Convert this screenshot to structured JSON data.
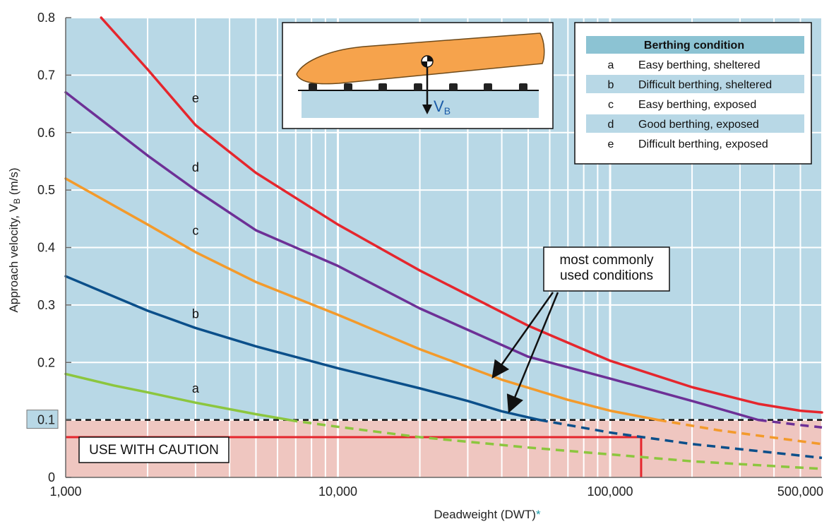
{
  "chart_data": {
    "type": "line",
    "xlabel": "Deadweight (DWT)",
    "xlabel_suffix": "*",
    "ylabel": "Approach velocity, V",
    "ylabel_sub": "B",
    "ylabel_unit": " (m/s)",
    "x_scale": "log",
    "xlim": [
      1000,
      600000
    ],
    "ylim": [
      0,
      0.8
    ],
    "x_ticks": [
      {
        "value": 1000,
        "label": "1,000"
      },
      {
        "value": 10000,
        "label": "10,000"
      },
      {
        "value": 100000,
        "label": "100,000"
      },
      {
        "value": 500000,
        "label": "500,000"
      }
    ],
    "y_ticks": [
      {
        "value": 0,
        "label": "0"
      },
      {
        "value": 0.1,
        "label": "0.1"
      },
      {
        "value": 0.2,
        "label": "0.2"
      },
      {
        "value": 0.3,
        "label": "0.3"
      },
      {
        "value": 0.4,
        "label": "0.4"
      },
      {
        "value": 0.5,
        "label": "0.5"
      },
      {
        "value": 0.6,
        "label": "0.6"
      },
      {
        "value": 0.7,
        "label": "0.7"
      },
      {
        "value": 0.8,
        "label": "0.8"
      }
    ],
    "grid": true,
    "threshold": 0.1,
    "series": [
      {
        "id": "a",
        "color": "#8cc63e",
        "points": [
          [
            1000,
            0.18
          ],
          [
            1500,
            0.16
          ],
          [
            2000,
            0.148
          ],
          [
            3000,
            0.13
          ],
          [
            5000,
            0.11
          ],
          [
            7000,
            0.098
          ],
          [
            10000,
            0.088
          ],
          [
            20000,
            0.07
          ],
          [
            50000,
            0.052
          ],
          [
            100000,
            0.04
          ],
          [
            200000,
            0.028
          ],
          [
            500000,
            0.017
          ],
          [
            600000,
            0.015
          ]
        ]
      },
      {
        "id": "b",
        "color": "#0b4f8a",
        "points": [
          [
            1000,
            0.35
          ],
          [
            2000,
            0.29
          ],
          [
            3000,
            0.26
          ],
          [
            5000,
            0.228
          ],
          [
            10000,
            0.19
          ],
          [
            20000,
            0.155
          ],
          [
            30000,
            0.133
          ],
          [
            40000,
            0.115
          ],
          [
            55000,
            0.1
          ],
          [
            100000,
            0.078
          ],
          [
            200000,
            0.058
          ],
          [
            500000,
            0.038
          ],
          [
            600000,
            0.034
          ]
        ]
      },
      {
        "id": "c",
        "color": "#f39a2b",
        "points": [
          [
            1000,
            0.52
          ],
          [
            2000,
            0.44
          ],
          [
            3000,
            0.392
          ],
          [
            5000,
            0.34
          ],
          [
            10000,
            0.283
          ],
          [
            20000,
            0.223
          ],
          [
            40000,
            0.17
          ],
          [
            70000,
            0.135
          ],
          [
            100000,
            0.116
          ],
          [
            150000,
            0.1
          ],
          [
            250000,
            0.082
          ],
          [
            500000,
            0.063
          ],
          [
            600000,
            0.058
          ]
        ]
      },
      {
        "id": "d",
        "color": "#6d3096",
        "points": [
          [
            1000,
            0.67
          ],
          [
            2000,
            0.56
          ],
          [
            3000,
            0.5
          ],
          [
            5000,
            0.43
          ],
          [
            10000,
            0.368
          ],
          [
            20000,
            0.294
          ],
          [
            50000,
            0.21
          ],
          [
            100000,
            0.172
          ],
          [
            200000,
            0.133
          ],
          [
            350000,
            0.1
          ],
          [
            500000,
            0.091
          ],
          [
            600000,
            0.087
          ]
        ]
      },
      {
        "id": "e",
        "color": "#e5262d",
        "points": [
          [
            1350,
            0.8
          ],
          [
            2000,
            0.71
          ],
          [
            3000,
            0.613
          ],
          [
            5000,
            0.53
          ],
          [
            10000,
            0.44
          ],
          [
            20000,
            0.36
          ],
          [
            50000,
            0.264
          ],
          [
            100000,
            0.203
          ],
          [
            200000,
            0.157
          ],
          [
            350000,
            0.128
          ],
          [
            500000,
            0.116
          ],
          [
            600000,
            0.113
          ]
        ]
      }
    ],
    "curve_labels": [
      {
        "id": "a",
        "text": "a",
        "x": 3000,
        "y": 0.14
      },
      {
        "id": "b",
        "text": "b",
        "x": 3000,
        "y": 0.27
      },
      {
        "id": "c",
        "text": "c",
        "x": 3000,
        "y": 0.415
      },
      {
        "id": "d",
        "text": "d",
        "x": 3000,
        "y": 0.525
      },
      {
        "id": "e",
        "text": "e",
        "x": 3000,
        "y": 0.645
      }
    ],
    "legend": {
      "position": "top-right",
      "title": "Berthing condition",
      "entries": [
        {
          "key": "a",
          "label": "Easy berthing, sheltered"
        },
        {
          "key": "b",
          "label": "Difficult berthing, sheltered"
        },
        {
          "key": "c",
          "label": "Easy berthing, exposed"
        },
        {
          "key": "d",
          "label": "Good berthing, exposed"
        },
        {
          "key": "e",
          "label": "Difficult berthing, exposed"
        }
      ]
    },
    "annotations": {
      "caution_label": "USE WITH CAUTION",
      "caution_box": {
        "x_start": 1000,
        "x_end": 130000,
        "y": 0.07
      },
      "common_lines": [
        "most commonly",
        "used conditions"
      ],
      "common_arrow_targets": [
        {
          "x": 42000,
          "y": 0.172
        },
        {
          "x": 42000,
          "y": 0.113
        }
      ],
      "inset_velocity_label": "V",
      "inset_velocity_sub": "B"
    },
    "colors": {
      "safe_area": "#b8d8e6",
      "caution_area": "#efc6c0",
      "grid": "#ffffff",
      "legend_header": "#8cc3d3",
      "legend_stripe": "#b8d8e6",
      "ship": "#f6a34c",
      "caution_line": "#e5262d",
      "velocity_label": "#1a5ba8",
      "asterisk": "#1a9aa8"
    }
  }
}
